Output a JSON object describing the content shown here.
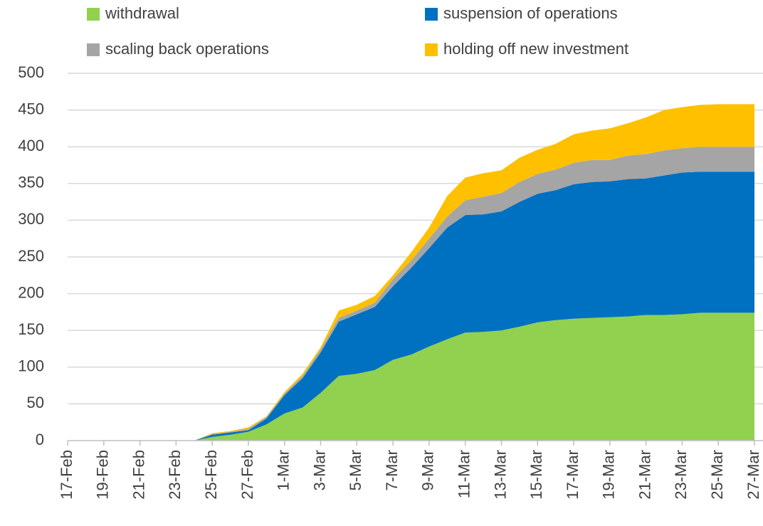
{
  "chart_data": {
    "type": "stacked_area",
    "categories": [
      "17-Feb",
      null,
      "19-Feb",
      null,
      "21-Feb",
      null,
      "23-Feb",
      null,
      "25-Feb",
      null,
      "27-Feb",
      null,
      "1-Mar",
      null,
      "3-Mar",
      null,
      "5-Mar",
      null,
      "7-Mar",
      null,
      "9-Mar",
      null,
      "11-Mar",
      null,
      "13-Mar",
      null,
      "15-Mar",
      null,
      "17-Mar",
      null,
      "19-Mar",
      null,
      "21-Mar",
      null,
      "23-Mar",
      null,
      "25-Mar",
      null,
      "27-Mar"
    ],
    "series": [
      {
        "name": "withdrawal",
        "color": "#92d050",
        "values": [
          0,
          0,
          0,
          0,
          0,
          0,
          0,
          0,
          5,
          8,
          12,
          22,
          37,
          45,
          65,
          88,
          91,
          96,
          110,
          117,
          128,
          138,
          147,
          148,
          150,
          155,
          161,
          164,
          166,
          167,
          168,
          169,
          171,
          171,
          172,
          174,
          174,
          174,
          174
        ]
      },
      {
        "name": "suspension of operations",
        "color": "#0070c0",
        "values": [
          0,
          0,
          0,
          0,
          0,
          0,
          0,
          0,
          3,
          3,
          2,
          8,
          25,
          40,
          55,
          74,
          81,
          86,
          100,
          118,
          134,
          152,
          160,
          160,
          162,
          170,
          175,
          177,
          183,
          185,
          185,
          187,
          186,
          190,
          193,
          192,
          192,
          192,
          192
        ]
      },
      {
        "name": "scaling back operations",
        "color": "#a5a5a5",
        "values": [
          0,
          0,
          0,
          0,
          0,
          0,
          0,
          0,
          1,
          1,
          2,
          2,
          2,
          3,
          4,
          5,
          5,
          6,
          10,
          10,
          13,
          15,
          20,
          24,
          25,
          27,
          27,
          28,
          29,
          30,
          29,
          32,
          33,
          34,
          33,
          34,
          34,
          34,
          34
        ]
      },
      {
        "name": "holding off new investment",
        "color": "#ffc000",
        "values": [
          0,
          0,
          0,
          0,
          0,
          0,
          0,
          0,
          1,
          1,
          2,
          1,
          2,
          3,
          3,
          10,
          8,
          9,
          5,
          11,
          15,
          28,
          31,
          32,
          31,
          33,
          33,
          35,
          39,
          40,
          43,
          44,
          50,
          55,
          56,
          57,
          58,
          58,
          58
        ]
      }
    ],
    "ylim": [
      0,
      500
    ],
    "yticks": [
      0,
      50,
      100,
      150,
      200,
      250,
      300,
      350,
      400,
      450,
      500
    ],
    "grid": true
  }
}
